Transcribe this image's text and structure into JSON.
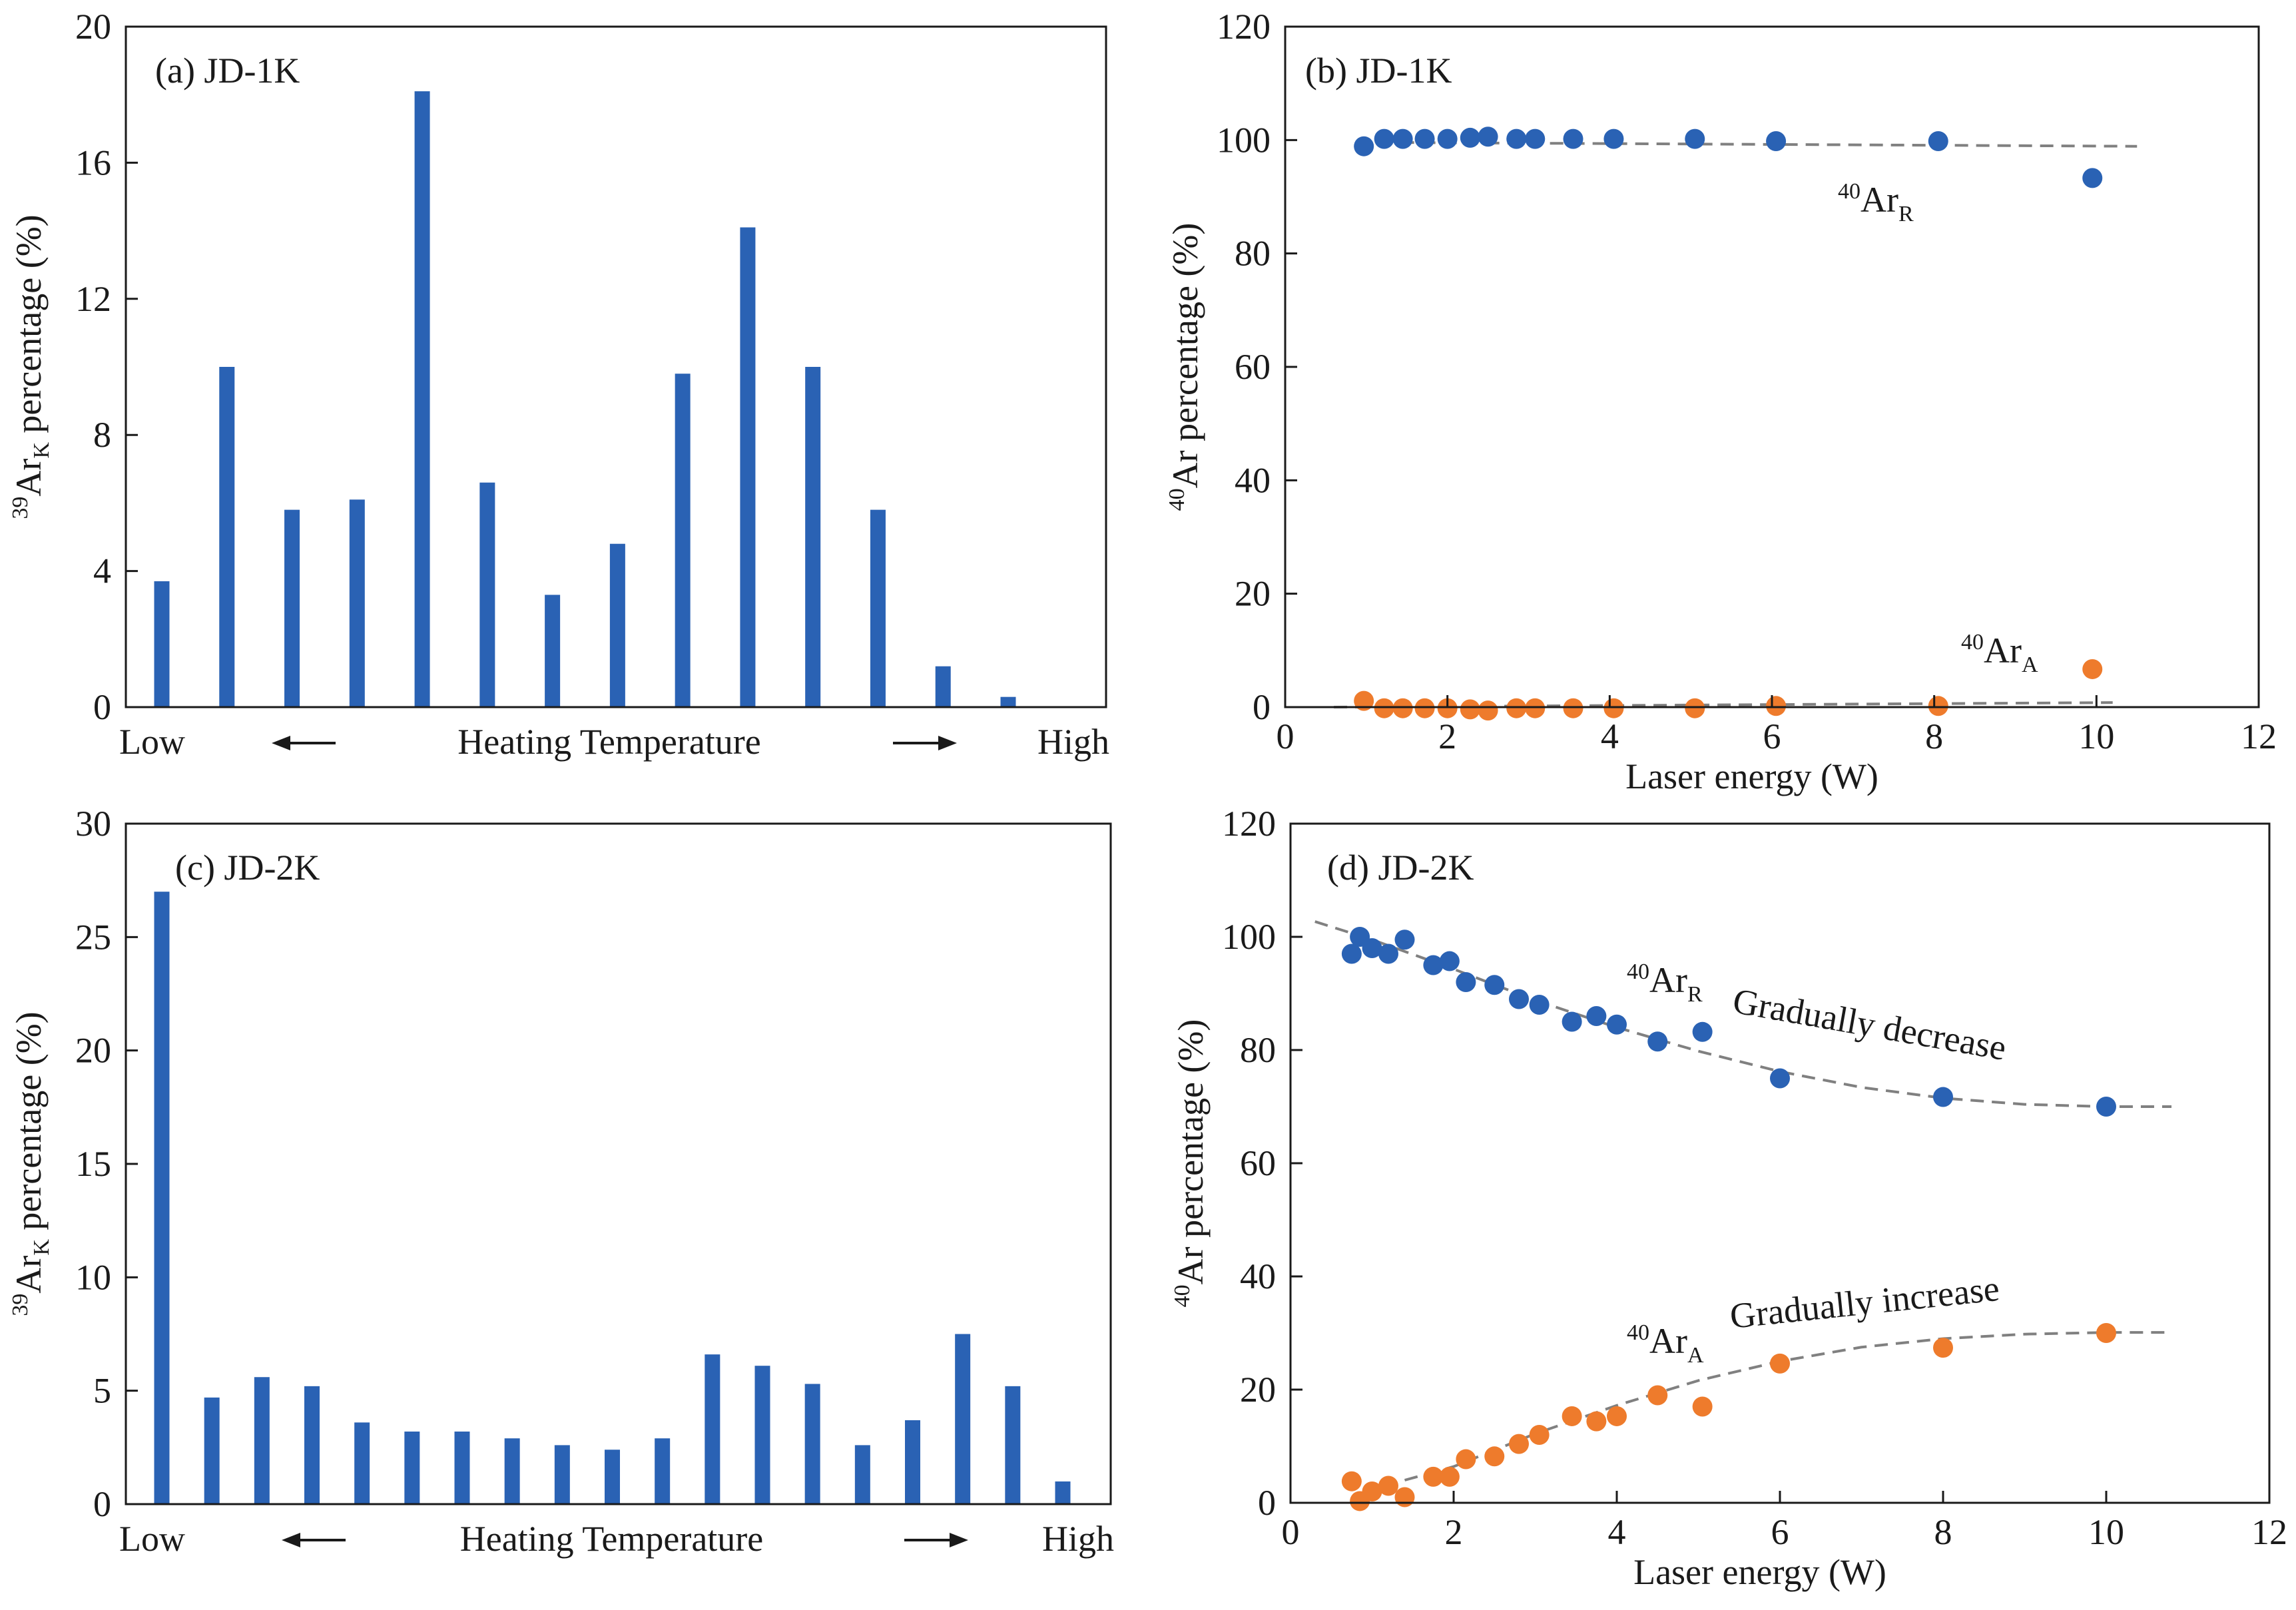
{
  "figure": {
    "background": "#ffffff",
    "colors": {
      "blue": "#2a62b4",
      "orange": "#ee7b2c",
      "fit": "#808080",
      "axis": "#1a1a1a"
    }
  },
  "chart_data": [
    {
      "panel": "a",
      "type": "bar",
      "title": "(a) JD-1K",
      "ylabel_parts": [
        "39",
        "Ar",
        "K",
        " percentage (%)"
      ],
      "ylim": [
        0,
        20
      ],
      "yticks": [
        0,
        4,
        8,
        12,
        16,
        20
      ],
      "values": [
        3.7,
        10.0,
        5.8,
        6.1,
        18.1,
        6.6,
        3.3,
        4.8,
        9.8,
        14.1,
        10.0,
        5.8,
        1.2,
        0.3
      ],
      "xaxis": {
        "low": "Low",
        "center": "Heating Temperature",
        "high": "High",
        "arrow_left": "←",
        "arrow_right": "→"
      }
    },
    {
      "panel": "b",
      "type": "scatter",
      "title": "(b) JD-1K",
      "xlabel": "Laser energy (W)",
      "ylabel_parts": [
        "40",
        "Ar percentage (%)"
      ],
      "xlim": [
        0,
        12
      ],
      "ylim": [
        0,
        120
      ],
      "xticks": [
        0,
        2,
        4,
        6,
        8,
        10,
        12
      ],
      "yticks": [
        0,
        20,
        40,
        60,
        80,
        100,
        120
      ],
      "series": [
        {
          "name": "40ArR",
          "label_parts": [
            "40",
            "Ar",
            "R"
          ],
          "x": [
            0.97,
            1.22,
            1.45,
            1.72,
            2.0,
            2.28,
            2.5,
            2.85,
            3.08,
            3.55,
            4.05,
            5.05,
            6.05,
            8.05,
            9.95
          ],
          "y": [
            98.9,
            100.2,
            100.2,
            100.2,
            100.2,
            100.4,
            100.6,
            100.2,
            100.2,
            100.2,
            100.2,
            100.2,
            99.8,
            99.8,
            93.3
          ],
          "fit_x": [
            0.9,
            10.5
          ],
          "fit_y": [
            99.6,
            98.9
          ]
        },
        {
          "name": "40ArA",
          "label_parts": [
            "40",
            "Ar",
            "A"
          ],
          "x": [
            0.97,
            1.22,
            1.45,
            1.72,
            2.0,
            2.28,
            2.5,
            2.85,
            3.08,
            3.55,
            4.05,
            5.05,
            6.05,
            8.05,
            9.95
          ],
          "y": [
            1.1,
            -0.2,
            -0.2,
            -0.2,
            -0.2,
            -0.4,
            -0.6,
            -0.2,
            -0.2,
            -0.2,
            -0.2,
            -0.2,
            0.2,
            0.2,
            6.7
          ],
          "fit_x": [
            0.6,
            10.2
          ],
          "fit_y": [
            0.0,
            0.8
          ]
        }
      ]
    },
    {
      "panel": "c",
      "type": "bar",
      "title": "(c) JD-2K",
      "ylabel_parts": [
        "39",
        "Ar",
        "K",
        " percentage (%)"
      ],
      "ylim": [
        0,
        30
      ],
      "yticks": [
        0,
        5,
        10,
        15,
        20,
        25,
        30
      ],
      "values": [
        27.0,
        4.7,
        5.6,
        5.2,
        3.6,
        3.2,
        3.2,
        2.9,
        2.6,
        2.4,
        2.9,
        6.6,
        6.1,
        5.3,
        2.6,
        3.7,
        7.5,
        5.2,
        1.0
      ],
      "xaxis": {
        "low": "Low",
        "center": "Heating Temperature",
        "high": "High",
        "arrow_left": "←",
        "arrow_right": "→"
      }
    },
    {
      "panel": "d",
      "type": "scatter",
      "title": "(d) JD-2K",
      "xlabel": "Laser energy (W)",
      "ylabel_parts": [
        "40",
        "Ar percentage (%)"
      ],
      "xlim": [
        0,
        12
      ],
      "ylim": [
        0,
        120
      ],
      "xticks": [
        0,
        2,
        4,
        6,
        8,
        10,
        12
      ],
      "yticks": [
        0,
        20,
        40,
        60,
        80,
        100,
        120
      ],
      "series": [
        {
          "name": "40ArR",
          "label_parts": [
            "40",
            "Ar",
            "R"
          ],
          "annotation": "Gradually decrease",
          "x": [
            0.75,
            0.85,
            1.0,
            1.2,
            1.4,
            1.75,
            1.95,
            2.15,
            2.5,
            2.8,
            3.05,
            3.45,
            3.75,
            4.0,
            4.5,
            5.05,
            6.0,
            8.0,
            10.0
          ],
          "y": [
            97.0,
            100.0,
            98.0,
            97.0,
            99.5,
            95.0,
            95.7,
            92.0,
            91.5,
            89.0,
            88.0,
            85.0,
            86.0,
            84.5,
            81.5,
            83.2,
            75.0,
            71.7,
            70.0
          ],
          "fit_x": [
            0.3,
            1.0,
            2.0,
            3.0,
            4.0,
            5.0,
            6.0,
            7.0,
            8.0,
            9.0,
            10.0,
            10.8
          ],
          "fit_y": [
            102.7,
            99.5,
            94.3,
            88.8,
            84.0,
            79.8,
            76.2,
            73.4,
            71.5,
            70.4,
            70.0,
            70.0
          ]
        },
        {
          "name": "40ArA",
          "label_parts": [
            "40",
            "Ar",
            "A"
          ],
          "annotation": "Gradually increase",
          "x": [
            0.75,
            0.85,
            1.0,
            1.2,
            1.4,
            1.75,
            1.95,
            2.15,
            2.5,
            2.8,
            3.05,
            3.45,
            3.75,
            4.0,
            4.5,
            5.05,
            6.0,
            8.0,
            10.0
          ],
          "y": [
            3.8,
            0.3,
            2.0,
            3.0,
            1.0,
            4.6,
            4.6,
            7.7,
            8.2,
            10.4,
            12.0,
            15.3,
            14.4,
            15.3,
            19.0,
            17.0,
            24.6,
            27.4,
            30.0
          ],
          "fit_x": [
            1.4,
            2.0,
            3.0,
            4.0,
            5.0,
            6.0,
            7.0,
            8.0,
            9.0,
            10.0,
            10.8
          ],
          "fit_y": [
            4.0,
            6.4,
            12.2,
            17.2,
            21.6,
            25.0,
            27.5,
            29.0,
            29.8,
            30.1,
            30.1
          ]
        }
      ]
    }
  ]
}
